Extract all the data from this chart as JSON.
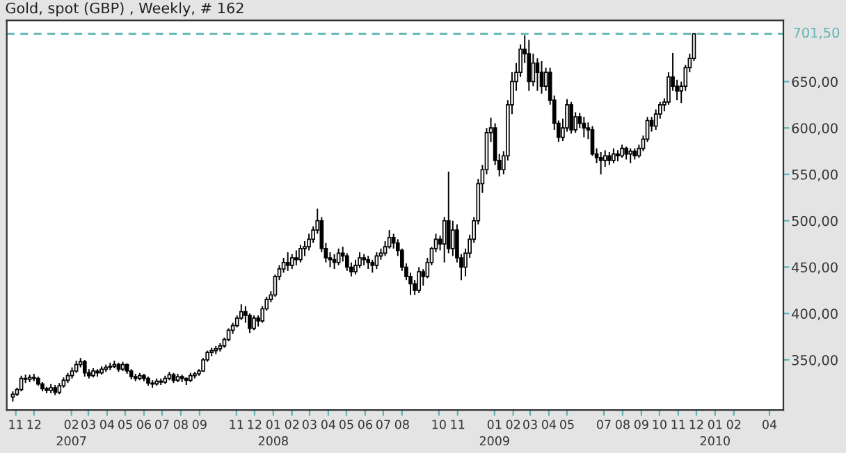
{
  "chart_data": {
    "type": "candlestick",
    "title": "Gold, spot (GBP) , Weekly, # 162",
    "x": [
      "2006-10-27",
      "2006-11-03",
      "2006-11-10",
      "2006-11-17",
      "2006-11-24",
      "2006-12-01",
      "2006-12-08",
      "2006-12-15",
      "2006-12-22",
      "2006-12-29",
      "2007-01-05",
      "2007-01-12",
      "2007-01-19",
      "2007-01-26",
      "2007-02-02",
      "2007-02-09",
      "2007-02-16",
      "2007-02-23",
      "2007-03-02",
      "2007-03-09",
      "2007-03-16",
      "2007-03-23",
      "2007-03-30",
      "2007-04-06",
      "2007-04-13",
      "2007-04-20",
      "2007-04-27",
      "2007-05-04",
      "2007-05-11",
      "2007-05-18",
      "2007-05-25",
      "2007-06-01",
      "2007-06-08",
      "2007-06-15",
      "2007-06-22",
      "2007-06-29",
      "2007-07-06",
      "2007-07-13",
      "2007-07-20",
      "2007-07-27",
      "2007-08-03",
      "2007-08-10",
      "2007-08-17",
      "2007-08-24",
      "2007-08-31",
      "2007-09-07",
      "2007-09-14",
      "2007-09-21",
      "2007-09-28",
      "2007-10-05",
      "2007-10-12",
      "2007-10-19",
      "2007-10-26",
      "2007-11-02",
      "2007-11-09",
      "2007-11-16",
      "2007-11-23",
      "2007-11-30",
      "2007-12-07",
      "2007-12-14",
      "2007-12-21",
      "2007-12-28",
      "2008-01-04",
      "2008-01-11",
      "2008-01-18",
      "2008-01-25",
      "2008-02-01",
      "2008-02-08",
      "2008-02-15",
      "2008-02-22",
      "2008-02-29",
      "2008-03-07",
      "2008-03-14",
      "2008-03-21",
      "2008-03-28",
      "2008-04-04",
      "2008-04-11",
      "2008-04-18",
      "2008-04-25",
      "2008-05-02",
      "2008-05-09",
      "2008-05-16",
      "2008-05-23",
      "2008-05-30",
      "2008-06-06",
      "2008-06-13",
      "2008-06-20",
      "2008-06-27",
      "2008-07-04",
      "2008-07-11",
      "2008-07-18",
      "2008-07-25",
      "2008-08-01",
      "2008-08-08",
      "2008-08-15",
      "2008-08-22",
      "2008-08-29",
      "2008-09-05",
      "2008-09-12",
      "2008-09-19",
      "2008-09-26",
      "2008-10-03",
      "2008-10-10",
      "2008-10-17",
      "2008-10-24",
      "2008-10-31",
      "2008-11-07",
      "2008-11-14",
      "2008-11-21",
      "2008-11-28",
      "2008-12-05",
      "2008-12-12",
      "2008-12-19",
      "2008-12-26",
      "2009-01-02",
      "2009-01-09",
      "2009-01-16",
      "2009-01-23",
      "2009-01-30",
      "2009-02-06",
      "2009-02-13",
      "2009-02-20",
      "2009-02-27",
      "2009-03-06",
      "2009-03-13",
      "2009-03-20",
      "2009-03-27",
      "2009-04-03",
      "2009-04-10",
      "2009-04-17",
      "2009-04-24",
      "2009-05-01",
      "2009-05-08",
      "2009-05-15",
      "2009-05-22",
      "2009-05-29",
      "2009-06-05",
      "2009-06-12",
      "2009-06-19",
      "2009-06-26",
      "2009-07-03",
      "2009-07-10",
      "2009-07-17",
      "2009-07-24",
      "2009-07-31",
      "2009-08-07",
      "2009-08-14",
      "2009-08-21",
      "2009-08-28",
      "2009-09-04",
      "2009-09-11",
      "2009-09-18",
      "2009-09-25",
      "2009-10-02",
      "2009-10-09",
      "2009-10-16",
      "2009-10-23",
      "2009-10-30",
      "2009-11-06",
      "2009-11-13",
      "2009-11-20",
      "2009-11-27"
    ],
    "ohlc": [
      [
        310,
        316,
        305,
        313
      ],
      [
        313,
        320,
        311,
        318
      ],
      [
        318,
        333,
        316,
        330
      ],
      [
        330,
        334,
        325,
        329
      ],
      [
        329,
        334,
        326,
        331
      ],
      [
        331,
        335,
        327,
        330
      ],
      [
        330,
        332,
        322,
        324
      ],
      [
        324,
        326,
        316,
        319
      ],
      [
        319,
        321,
        314,
        317
      ],
      [
        317,
        324,
        314,
        320
      ],
      [
        320,
        323,
        312,
        315
      ],
      [
        315,
        325,
        313,
        322
      ],
      [
        322,
        331,
        320,
        328
      ],
      [
        328,
        336,
        325,
        333
      ],
      [
        333,
        342,
        330,
        338
      ],
      [
        338,
        349,
        336,
        345
      ],
      [
        345,
        352,
        342,
        348
      ],
      [
        348,
        350,
        332,
        336
      ],
      [
        336,
        340,
        330,
        333
      ],
      [
        333,
        341,
        331,
        338
      ],
      [
        338,
        340,
        332,
        336
      ],
      [
        336,
        343,
        334,
        340
      ],
      [
        340,
        345,
        337,
        342
      ],
      [
        342,
        347,
        339,
        343
      ],
      [
        343,
        349,
        341,
        345
      ],
      [
        345,
        347,
        337,
        340
      ],
      [
        340,
        348,
        338,
        345
      ],
      [
        345,
        346,
        335,
        338
      ],
      [
        338,
        340,
        329,
        332
      ],
      [
        332,
        335,
        327,
        330
      ],
      [
        330,
        336,
        328,
        333
      ],
      [
        333,
        335,
        327,
        330
      ],
      [
        330,
        332,
        322,
        325
      ],
      [
        325,
        328,
        320,
        324
      ],
      [
        324,
        330,
        322,
        327
      ],
      [
        327,
        330,
        323,
        326
      ],
      [
        326,
        333,
        324,
        330
      ],
      [
        330,
        337,
        328,
        334
      ],
      [
        334,
        336,
        325,
        328
      ],
      [
        328,
        335,
        326,
        332
      ],
      [
        332,
        334,
        326,
        330
      ],
      [
        330,
        331,
        323,
        328
      ],
      [
        328,
        336,
        326,
        333
      ],
      [
        333,
        337,
        330,
        335
      ],
      [
        335,
        340,
        333,
        338
      ],
      [
        338,
        352,
        337,
        350
      ],
      [
        350,
        360,
        348,
        358
      ],
      [
        358,
        363,
        354,
        360
      ],
      [
        360,
        365,
        356,
        362
      ],
      [
        362,
        368,
        359,
        365
      ],
      [
        365,
        374,
        363,
        372
      ],
      [
        372,
        384,
        370,
        382
      ],
      [
        382,
        390,
        378,
        387
      ],
      [
        387,
        398,
        385,
        395
      ],
      [
        395,
        410,
        393,
        402
      ],
      [
        402,
        408,
        390,
        398
      ],
      [
        398,
        400,
        379,
        384
      ],
      [
        384,
        398,
        382,
        395
      ],
      [
        395,
        398,
        386,
        392
      ],
      [
        392,
        408,
        390,
        405
      ],
      [
        405,
        418,
        403,
        415
      ],
      [
        415,
        424,
        412,
        420
      ],
      [
        420,
        442,
        418,
        440
      ],
      [
        440,
        452,
        436,
        448
      ],
      [
        448,
        460,
        444,
        455
      ],
      [
        455,
        466,
        446,
        452
      ],
      [
        452,
        464,
        448,
        460
      ],
      [
        460,
        468,
        452,
        458
      ],
      [
        458,
        474,
        455,
        470
      ],
      [
        470,
        478,
        462,
        472
      ],
      [
        472,
        486,
        468,
        480
      ],
      [
        480,
        494,
        476,
        490
      ],
      [
        490,
        513,
        486,
        500
      ],
      [
        500,
        504,
        466,
        470
      ],
      [
        470,
        476,
        455,
        460
      ],
      [
        460,
        466,
        450,
        458
      ],
      [
        458,
        464,
        448,
        455
      ],
      [
        455,
        470,
        452,
        465
      ],
      [
        465,
        472,
        456,
        462
      ],
      [
        462,
        465,
        446,
        450
      ],
      [
        450,
        455,
        440,
        445
      ],
      [
        445,
        458,
        442,
        452
      ],
      [
        452,
        466,
        449,
        460
      ],
      [
        460,
        464,
        452,
        458
      ],
      [
        458,
        462,
        448,
        455
      ],
      [
        455,
        458,
        444,
        452
      ],
      [
        452,
        466,
        448,
        462
      ],
      [
        462,
        470,
        458,
        465
      ],
      [
        465,
        478,
        462,
        472
      ],
      [
        472,
        490,
        470,
        482
      ],
      [
        482,
        486,
        470,
        476
      ],
      [
        476,
        480,
        462,
        468
      ],
      [
        468,
        470,
        446,
        450
      ],
      [
        450,
        454,
        436,
        440
      ],
      [
        440,
        444,
        420,
        432
      ],
      [
        432,
        436,
        420,
        425
      ],
      [
        425,
        450,
        422,
        445
      ],
      [
        445,
        448,
        430,
        440
      ],
      [
        440,
        460,
        438,
        455
      ],
      [
        455,
        472,
        452,
        470
      ],
      [
        470,
        486,
        466,
        480
      ],
      [
        480,
        484,
        468,
        475
      ],
      [
        475,
        504,
        455,
        500
      ],
      [
        500,
        553,
        465,
        470
      ],
      [
        470,
        500,
        462,
        490
      ],
      [
        490,
        496,
        455,
        460
      ],
      [
        460,
        464,
        436,
        450
      ],
      [
        450,
        470,
        440,
        465
      ],
      [
        465,
        485,
        460,
        480
      ],
      [
        480,
        504,
        476,
        500
      ],
      [
        500,
        545,
        496,
        540
      ],
      [
        540,
        560,
        530,
        555
      ],
      [
        555,
        600,
        550,
        595
      ],
      [
        595,
        611,
        585,
        600
      ],
      [
        600,
        605,
        560,
        565
      ],
      [
        565,
        572,
        548,
        555
      ],
      [
        555,
        575,
        550,
        570
      ],
      [
        570,
        630,
        565,
        625
      ],
      [
        625,
        660,
        615,
        650
      ],
      [
        650,
        670,
        640,
        660
      ],
      [
        660,
        690,
        655,
        685
      ],
      [
        685,
        700,
        670,
        680
      ],
      [
        680,
        695,
        640,
        650
      ],
      [
        650,
        680,
        645,
        670
      ],
      [
        670,
        675,
        640,
        660
      ],
      [
        660,
        672,
        637,
        645
      ],
      [
        645,
        665,
        640,
        660
      ],
      [
        660,
        665,
        625,
        630
      ],
      [
        630,
        635,
        598,
        605
      ],
      [
        605,
        608,
        585,
        590
      ],
      [
        590,
        610,
        586,
        600
      ],
      [
        600,
        631,
        596,
        625
      ],
      [
        625,
        628,
        594,
        598
      ],
      [
        598,
        617,
        595,
        612
      ],
      [
        612,
        616,
        600,
        605
      ],
      [
        605,
        612,
        590,
        600
      ],
      [
        600,
        606,
        588,
        598
      ],
      [
        598,
        602,
        570,
        572
      ],
      [
        572,
        578,
        562,
        568
      ],
      [
        568,
        574,
        550,
        565
      ],
      [
        565,
        576,
        558,
        570
      ],
      [
        570,
        574,
        560,
        565
      ],
      [
        565,
        578,
        562,
        572
      ],
      [
        572,
        576,
        564,
        570
      ],
      [
        570,
        582,
        568,
        578
      ],
      [
        578,
        580,
        566,
        572
      ],
      [
        572,
        578,
        562,
        575
      ],
      [
        575,
        578,
        566,
        570
      ],
      [
        570,
        582,
        568,
        578
      ],
      [
        578,
        592,
        575,
        588
      ],
      [
        588,
        612,
        585,
        608
      ],
      [
        608,
        612,
        596,
        602
      ],
      [
        602,
        620,
        598,
        615
      ],
      [
        615,
        628,
        610,
        625
      ],
      [
        625,
        632,
        618,
        628
      ],
      [
        628,
        660,
        625,
        655
      ],
      [
        655,
        681,
        640,
        645
      ],
      [
        645,
        652,
        630,
        640
      ],
      [
        640,
        650,
        627,
        645
      ],
      [
        645,
        668,
        640,
        665
      ],
      [
        665,
        680,
        660,
        675
      ],
      [
        675,
        701.5,
        672,
        701.5
      ]
    ],
    "color": "#000000",
    "xlim": [
      "2006-10-17",
      "2010-04-24"
    ],
    "xticks": [
      {
        "value": "2006-11-01",
        "label": "11"
      },
      {
        "value": "2006-12-01",
        "label": "12"
      },
      {
        "value": "2007-02-01",
        "label": "02\n2007"
      },
      {
        "value": "2007-03-01",
        "label": "03"
      },
      {
        "value": "2007-04-01",
        "label": "04"
      },
      {
        "value": "2007-05-01",
        "label": "05"
      },
      {
        "value": "2007-06-01",
        "label": "06"
      },
      {
        "value": "2007-07-01",
        "label": "07"
      },
      {
        "value": "2007-08-01",
        "label": "08"
      },
      {
        "value": "2007-09-01",
        "label": "09"
      },
      {
        "value": "2007-11-01",
        "label": "11"
      },
      {
        "value": "2007-12-01",
        "label": "12"
      },
      {
        "value": "2008-01-01",
        "label": "01\n2008"
      },
      {
        "value": "2008-02-01",
        "label": "02"
      },
      {
        "value": "2008-03-01",
        "label": "03"
      },
      {
        "value": "2008-04-01",
        "label": "04"
      },
      {
        "value": "2008-05-01",
        "label": "05"
      },
      {
        "value": "2008-06-01",
        "label": "06"
      },
      {
        "value": "2008-07-01",
        "label": "07"
      },
      {
        "value": "2008-08-01",
        "label": "08"
      },
      {
        "value": "2008-10-01",
        "label": "10"
      },
      {
        "value": "2008-11-01",
        "label": "11"
      },
      {
        "value": "2009-01-01",
        "label": "01\n2009"
      },
      {
        "value": "2009-02-01",
        "label": "02"
      },
      {
        "value": "2009-03-01",
        "label": "03"
      },
      {
        "value": "2009-04-01",
        "label": "04"
      },
      {
        "value": "2009-05-01",
        "label": "05"
      },
      {
        "value": "2009-07-01",
        "label": "07"
      },
      {
        "value": "2009-08-01",
        "label": "08"
      },
      {
        "value": "2009-09-01",
        "label": "09"
      },
      {
        "value": "2009-10-01",
        "label": "10"
      },
      {
        "value": "2009-11-01",
        "label": "11"
      },
      {
        "value": "2009-12-01",
        "label": "12"
      },
      {
        "value": "2010-01-01",
        "label": "01\n2010"
      },
      {
        "value": "2010-02-01",
        "label": "02"
      },
      {
        "value": "2010-04-01",
        "label": "04"
      }
    ],
    "ylim": [
      296,
      716
    ],
    "yticks": [
      {
        "value": 350,
        "label": "350,00"
      },
      {
        "value": 400,
        "label": "400,00"
      },
      {
        "value": 450,
        "label": "450,00"
      },
      {
        "value": 500,
        "label": "500,00"
      },
      {
        "value": 550,
        "label": "550,00"
      },
      {
        "value": 600,
        "label": "600,00"
      },
      {
        "value": 650,
        "label": "650,00"
      }
    ],
    "ref_lines": [
      {
        "axis": "y",
        "value": 701.5,
        "label": "701,50",
        "color": "#5fb3b3",
        "line_style": "dashed"
      }
    ],
    "grid": false,
    "legend": false
  }
}
